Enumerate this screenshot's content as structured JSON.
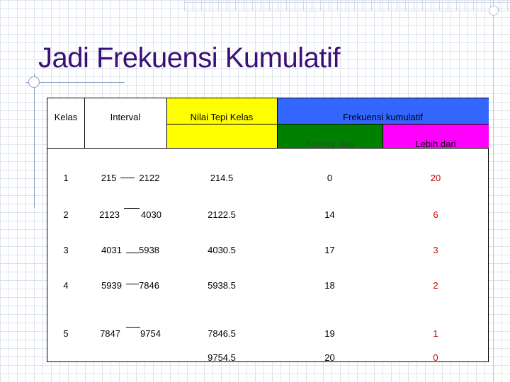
{
  "slide": {
    "title": "Jadi Frekuensi Kumulatif"
  },
  "table": {
    "headers": {
      "kelas": "Kelas",
      "interval": "Interval",
      "nilai_tepi": "Nilai Tepi Kelas",
      "frek_kum": "Frekuensi kumulatif",
      "kurang_dari": "Kurang dari",
      "lebih_dari": "Lebih dari"
    },
    "rows": [
      {
        "kelas": "1",
        "low": "215",
        "high": "2122",
        "tepi": "214.5",
        "kurang": "0",
        "lebih": "20"
      },
      {
        "kelas": "2",
        "low": "2123",
        "high": "4030",
        "tepi": "2122.5",
        "kurang": "14",
        "lebih": "6"
      },
      {
        "kelas": "3",
        "low": "4031",
        "high": "5938",
        "tepi": "4030.5",
        "kurang": "17",
        "lebih": "3"
      },
      {
        "kelas": "4",
        "low": "5939",
        "high": "7846",
        "tepi": "5938.5",
        "kurang": "18",
        "lebih": "2"
      },
      {
        "kelas": "5",
        "low": "7847",
        "high": "9754",
        "tepi": "7846.5",
        "kurang": "19",
        "lebih": "1"
      }
    ],
    "last_row": {
      "tepi": "9754.5",
      "kurang": "20",
      "lebih": "0"
    },
    "colors": {
      "header_yellow": "#ffff00",
      "header_blue": "#3366ff",
      "header_green": "#008000",
      "header_magenta": "#ff00ff",
      "lebih_values": "#cc0000",
      "title": "#3a1078"
    }
  }
}
